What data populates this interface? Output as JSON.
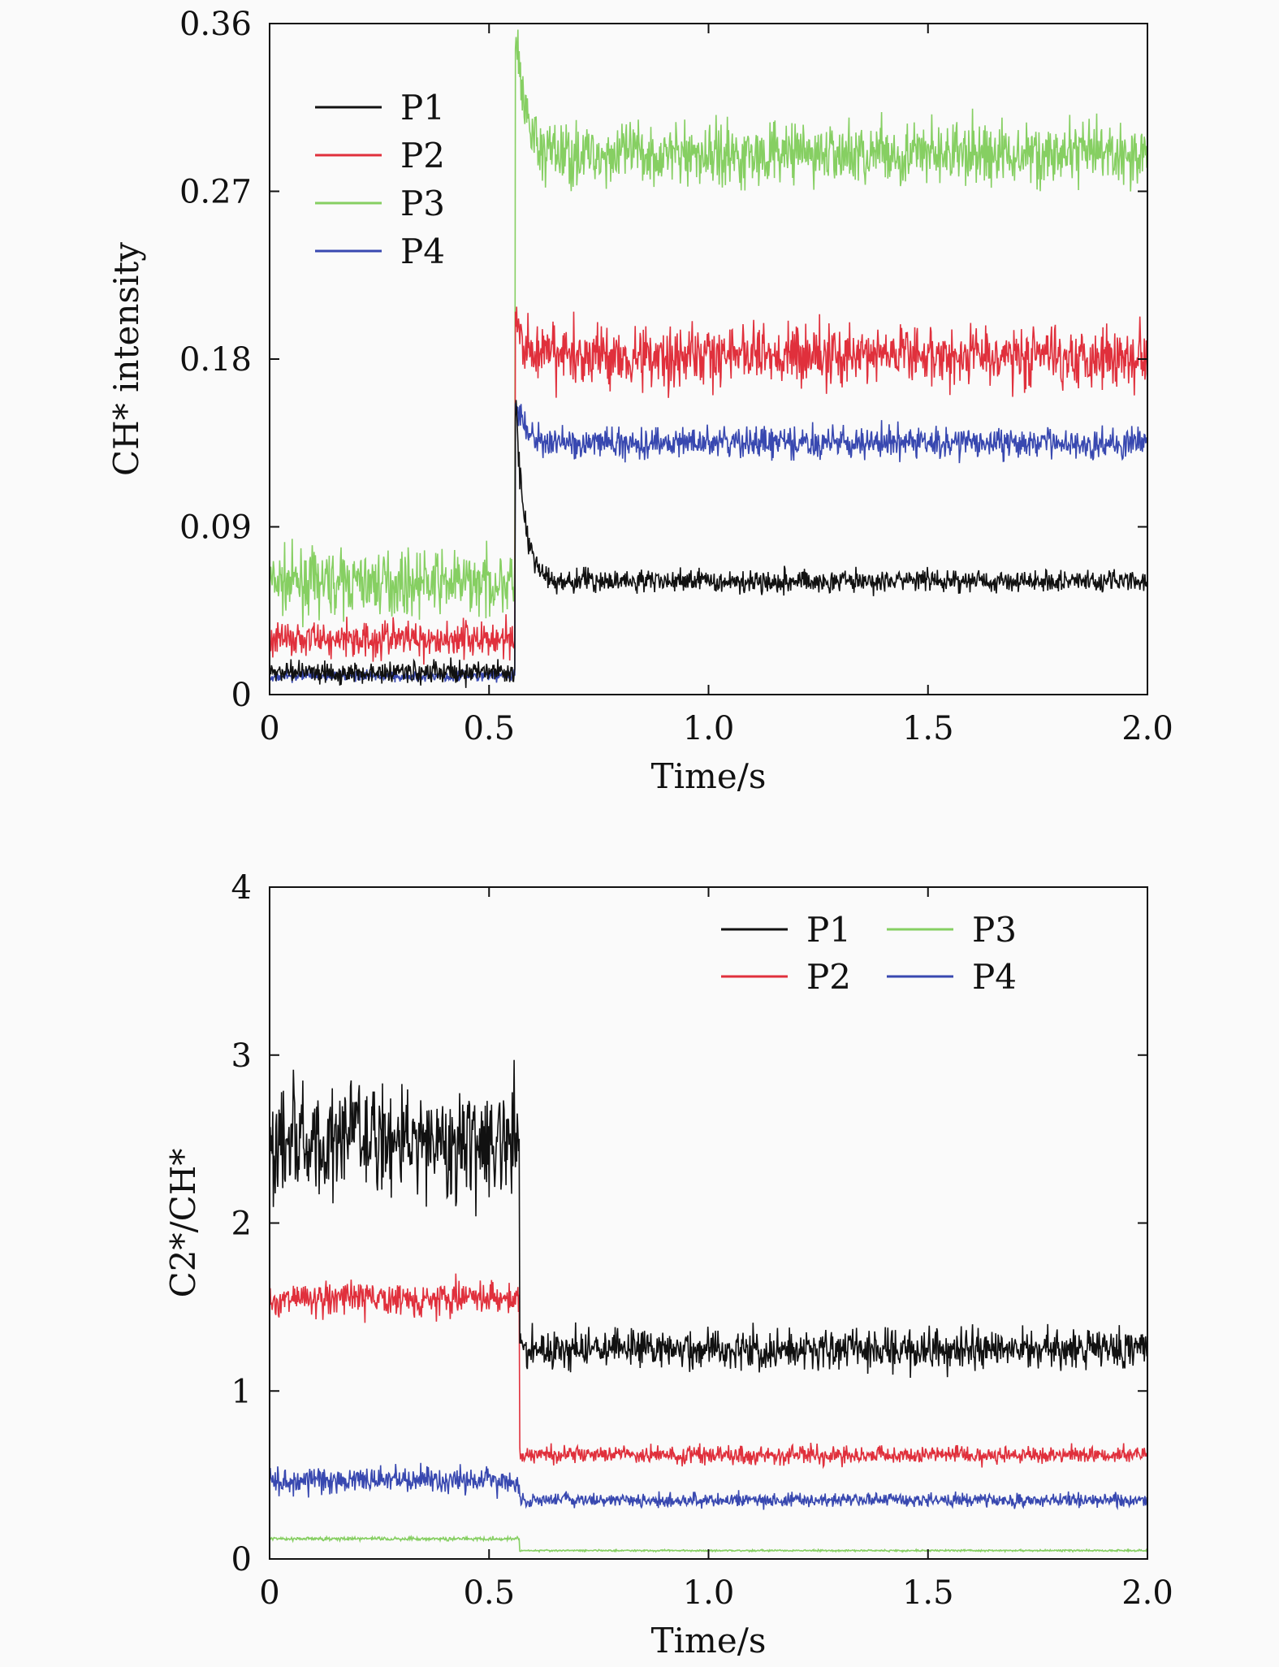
{
  "colors": {
    "P1": "#111111",
    "P2": "#e0303c",
    "P3": "#86cf62",
    "P4": "#3848b0"
  },
  "chart_data": [
    {
      "type": "line",
      "title": "",
      "xlabel": "Time/s",
      "ylabel": "CH* intensity",
      "xlim": [
        0,
        2.0
      ],
      "ylim": [
        0,
        0.36
      ],
      "xticks": [
        0,
        0.5,
        1.0,
        1.5,
        2.0
      ],
      "xtick_labels": [
        "0",
        "0.5",
        "1.0",
        "1.5",
        "2.0"
      ],
      "yticks": [
        0,
        0.09,
        0.18,
        0.27,
        0.36
      ],
      "ytick_labels": [
        "0",
        "0.09",
        "0.18",
        "0.27",
        "0.36"
      ],
      "legend": {
        "placement": "top-left",
        "entries": [
          "P1",
          "P2",
          "P3",
          "P4"
        ]
      },
      "transition_time": 0.56,
      "series": [
        {
          "name": "P1",
          "before_mean": 0.012,
          "before_noise": 0.006,
          "after_mean": 0.061,
          "after_noise": 0.006,
          "peak": 0.16
        },
        {
          "name": "P2",
          "before_mean": 0.03,
          "before_noise": 0.01,
          "after_mean": 0.182,
          "after_noise": 0.016,
          "peak": 0.2
        },
        {
          "name": "P3",
          "before_mean": 0.06,
          "before_noise": 0.016,
          "after_mean": 0.29,
          "after_noise": 0.016,
          "peak": 0.36
        },
        {
          "name": "P4",
          "before_mean": 0.01,
          "before_noise": 0.003,
          "after_mean": 0.135,
          "after_noise": 0.008,
          "peak": 0.16
        }
      ]
    },
    {
      "type": "line",
      "title": "",
      "xlabel": "Time/s",
      "ylabel": "C2*/CH*",
      "xlim": [
        0,
        2.0
      ],
      "ylim": [
        0,
        4
      ],
      "xticks": [
        0,
        0.5,
        1.0,
        1.5,
        2.0
      ],
      "xtick_labels": [
        "0",
        "0.5",
        "1.0",
        "1.5",
        "2.0"
      ],
      "yticks": [
        0,
        1,
        2,
        3,
        4
      ],
      "ytick_labels": [
        "0",
        "1",
        "2",
        "3",
        "4"
      ],
      "legend": {
        "placement": "top-right",
        "entries": [
          "P1",
          "P2",
          "P3",
          "P4"
        ]
      },
      "transition_time": 0.57,
      "series": [
        {
          "name": "P1",
          "before_mean": 2.5,
          "before_noise": 0.35,
          "after_mean": 1.25,
          "after_noise": 0.12
        },
        {
          "name": "P2",
          "before_mean": 1.55,
          "before_noise": 0.1,
          "after_mean": 0.62,
          "after_noise": 0.05
        },
        {
          "name": "P3",
          "before_mean": 0.12,
          "before_noise": 0.01,
          "after_mean": 0.05,
          "after_noise": 0.005
        },
        {
          "name": "P4",
          "before_mean": 0.47,
          "before_noise": 0.08,
          "after_mean": 0.35,
          "after_noise": 0.04
        }
      ]
    }
  ]
}
